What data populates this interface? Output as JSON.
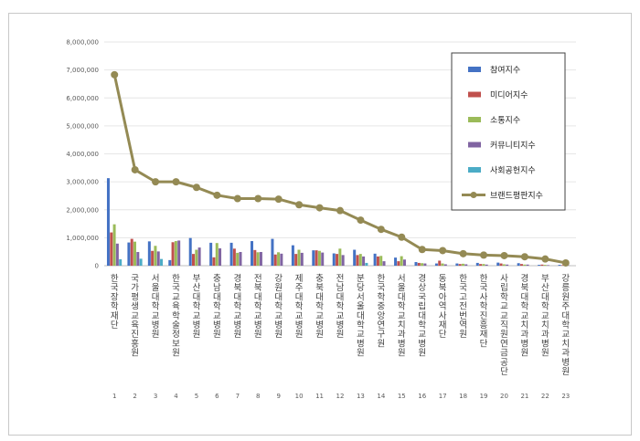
{
  "chart_data": {
    "type": "bar",
    "ylim": [
      0,
      8000000
    ],
    "yticks": [
      "0",
      "1,000,000",
      "2,000,000",
      "3,000,000",
      "4,000,000",
      "5,000,000",
      "6,000,000",
      "7,000,000",
      "8,000,000"
    ],
    "ytick_values": [
      0,
      1000000,
      2000000,
      3000000,
      4000000,
      5000000,
      6000000,
      7000000,
      8000000
    ],
    "categories": [
      "1",
      "2",
      "3",
      "4",
      "5",
      "6",
      "7",
      "8",
      "9",
      "10",
      "11",
      "12",
      "13",
      "14",
      "15",
      "16",
      "17",
      "18",
      "19",
      "20",
      "21",
      "22",
      "23"
    ],
    "category_names": [
      "한국장학재단",
      "국가평생교육진흥원",
      "서울대학교병원",
      "한국교육학술정보원",
      "부산대학교병원",
      "충남대학교병원",
      "경북대학교병원",
      "전북대학교병원",
      "강원대학교병원",
      "제주대학교병원",
      "충북대학교병원",
      "전남대학교병원",
      "분당서울대학교병원",
      "한국학중앙연구원",
      "서울대학교치과병원",
      "경상국립대학교병원",
      "동북아역사재단",
      "한국고전번역원",
      "한국사학진흥재단",
      "사립학교교직원연금공단",
      "경북대학교치과병원",
      "부산대학교치과병원",
      "강릉원주대학교치과병원"
    ],
    "grid": true,
    "legend_position": "right",
    "series": [
      {
        "name": "참여지수",
        "type": "bar",
        "color": "#4472c4",
        "values": [
          3130000,
          830000,
          870000,
          200000,
          990000,
          820000,
          820000,
          880000,
          960000,
          730000,
          550000,
          440000,
          570000,
          430000,
          290000,
          130000,
          80000,
          80000,
          100000,
          110000,
          90000,
          30000,
          30000
        ]
      },
      {
        "name": "미디어지수",
        "type": "bar",
        "color": "#c0504d",
        "values": [
          1190000,
          960000,
          530000,
          840000,
          420000,
          300000,
          610000,
          560000,
          400000,
          420000,
          550000,
          420000,
          380000,
          330000,
          160000,
          100000,
          180000,
          60000,
          60000,
          80000,
          60000,
          40000,
          20000
        ]
      },
      {
        "name": "소통지수",
        "type": "bar",
        "color": "#9bbb59",
        "values": [
          1480000,
          860000,
          710000,
          880000,
          570000,
          810000,
          460000,
          480000,
          480000,
          570000,
          530000,
          610000,
          420000,
          350000,
          340000,
          90000,
          80000,
          70000,
          60000,
          50000,
          40000,
          30000,
          20000
        ]
      },
      {
        "name": "커뮤니티지수",
        "type": "bar",
        "color": "#8064a2",
        "values": [
          790000,
          490000,
          510000,
          900000,
          650000,
          620000,
          490000,
          490000,
          430000,
          460000,
          470000,
          380000,
          330000,
          160000,
          220000,
          80000,
          50000,
          50000,
          40000,
          40000,
          40000,
          20000,
          10000
        ]
      },
      {
        "name": "사회공헌지수",
        "type": "bar",
        "color": "#4bacc6",
        "values": [
          230000,
          250000,
          240000,
          0,
          0,
          0,
          0,
          0,
          0,
          0,
          0,
          0,
          100000,
          0,
          0,
          0,
          0,
          0,
          0,
          0,
          0,
          0,
          0
        ]
      },
      {
        "name": "브랜드평판지수",
        "type": "line",
        "color": "#948a54",
        "values": [
          6830000,
          3430000,
          3000000,
          3000000,
          2800000,
          2520000,
          2400000,
          2400000,
          2380000,
          2180000,
          2070000,
          1970000,
          1630000,
          1300000,
          1020000,
          580000,
          540000,
          430000,
          380000,
          360000,
          320000,
          240000,
          100000
        ]
      }
    ]
  }
}
